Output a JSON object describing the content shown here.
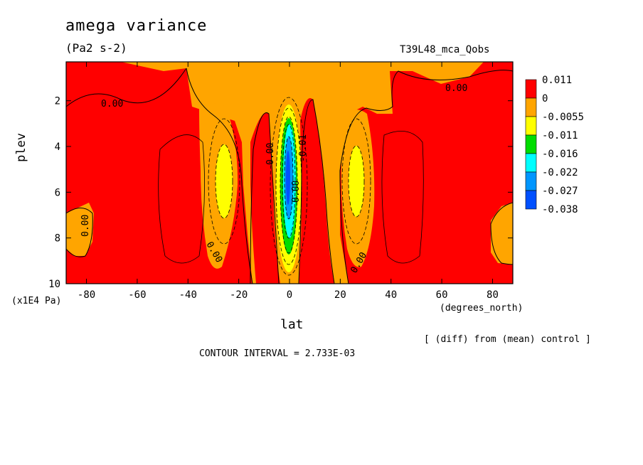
{
  "chart_data": {
    "type": "contour",
    "title": "amega variance",
    "units": "(Pa2 s-2)",
    "run_name": "T39L48_mca_Qobs",
    "xlabel": "lat",
    "x_units": "(degrees_north)",
    "ylabel": "plev",
    "y_units": "(x1E4 Pa)",
    "xlim": [
      -88,
      88
    ],
    "ylim": [
      10,
      0.3
    ],
    "x_ticks": [
      "-80",
      "-60",
      "-40",
      "-20",
      "0",
      "20",
      "40",
      "60",
      "80"
    ],
    "y_ticks": [
      "2",
      "4",
      "6",
      "8",
      "10"
    ],
    "contour_labels": [
      "0.00",
      "0.00",
      "0.00",
      "0.00",
      "0.00",
      "0.00",
      "0.00",
      "-0.01"
    ],
    "colorbar": {
      "labels": [
        "0.011",
        "0",
        "-0.0055",
        "-0.011",
        "-0.016",
        "-0.022",
        "-0.027",
        "-0.038"
      ],
      "colors": [
        "#ff0000",
        "#ffa500",
        "#ffff00",
        "#00dd00",
        "#00ffff",
        "#0096ff",
        "#0050ff"
      ]
    },
    "note": "[ (diff) from (mean) control ]",
    "contour_interval": "CONTOUR INTERVAL = 2.733E-03"
  }
}
